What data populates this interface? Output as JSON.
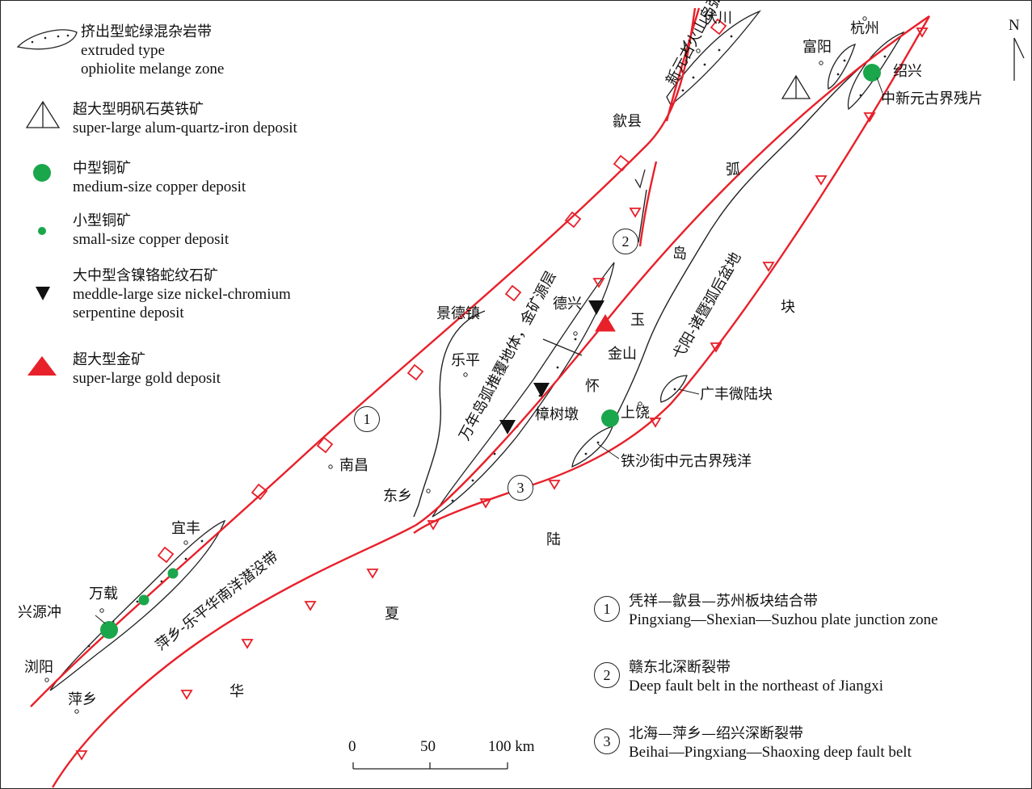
{
  "legend": [
    {
      "symbol": "ophiolite-lens",
      "zh": "挤出型蛇绿混杂岩带",
      "en": [
        "extruded type",
        "ophiolite melange zone"
      ]
    },
    {
      "symbol": "open-triangle",
      "zh": "超大型明矾石英铁矿",
      "en": [
        "super-large alum-quartz-iron deposit"
      ]
    },
    {
      "symbol": "large-green-dot",
      "color": "#1aa64b",
      "zh": "中型铜矿",
      "en": [
        "medium-size copper deposit"
      ]
    },
    {
      "symbol": "small-green-dot",
      "color": "#1aa64b",
      "zh": "小型铜矿",
      "en": [
        "small-size copper deposit"
      ]
    },
    {
      "symbol": "black-triangle",
      "zh": "大中型含镍铬蛇纹石矿",
      "en": [
        "meddle-large size nickel-chromium",
        "serpentine  deposit"
      ]
    },
    {
      "symbol": "red-triangle",
      "color": "#e8202a",
      "zh": "超大型金矿",
      "en": [
        "super-large gold deposit"
      ]
    }
  ],
  "north_arrow": "N",
  "places": {
    "fuchuan": "伏川",
    "hangzhou": "杭州",
    "fuyang": "富阳",
    "shaoxing": "绍兴",
    "shexian": "歙县",
    "jingdezhen": "景德镇",
    "leping": "乐平",
    "dexing": "德兴",
    "jinshan": "金山",
    "zhangshudun": "樟树墩",
    "shangrao": "上饶",
    "nanchang": "南昌",
    "dongxiang": "东乡",
    "yifeng": "宜丰",
    "wanzai": "万载",
    "xingyuanchong": "兴源冲",
    "liuyang": "浏阳",
    "pingxiang": "萍乡"
  },
  "regions": {
    "hu": "弧",
    "dao": "岛",
    "kuai": "块",
    "yu": "玉",
    "huai": "怀",
    "lu": "陆",
    "xia": "夏",
    "hua": "华"
  },
  "zones": {
    "neoproterozoic_volcanic_arc": "新元古火山岛弧残片",
    "neoproterozoic_fragment": "中新元古界残片",
    "yiyang_backarc": "弋阳-诸暨弧后盆地",
    "wannian_nappe": "万年岛弧推覆地体，金矿源层",
    "pingxiang_subduction": "萍乡-乐平华南洋潜没带",
    "guangfeng_block": "广丰微陆块",
    "tieshajie_ocean": "铁沙街中元古界残洋"
  },
  "fault_numbers": [
    "1",
    "2",
    "3"
  ],
  "faults_legend": [
    {
      "num": "1",
      "zh": "凭祥—歙县—苏州板块结合带",
      "en": "Pingxiang—Shexian—Suzhou plate junction zone"
    },
    {
      "num": "2",
      "zh": "赣东北深断裂带",
      "en": "Deep fault belt in the northeast of Jiangxi"
    },
    {
      "num": "3",
      "zh": "北海—萍乡—绍兴深断裂带",
      "en": "Beihai—Pingxiang—Shaoxing deep fault belt"
    }
  ],
  "scale": {
    "ticks": [
      "0",
      "50",
      "100 km"
    ]
  },
  "colors": {
    "fault": "#e8202a",
    "copper": "#1aa64b",
    "gold": "#e8202a",
    "line": "#222222"
  }
}
